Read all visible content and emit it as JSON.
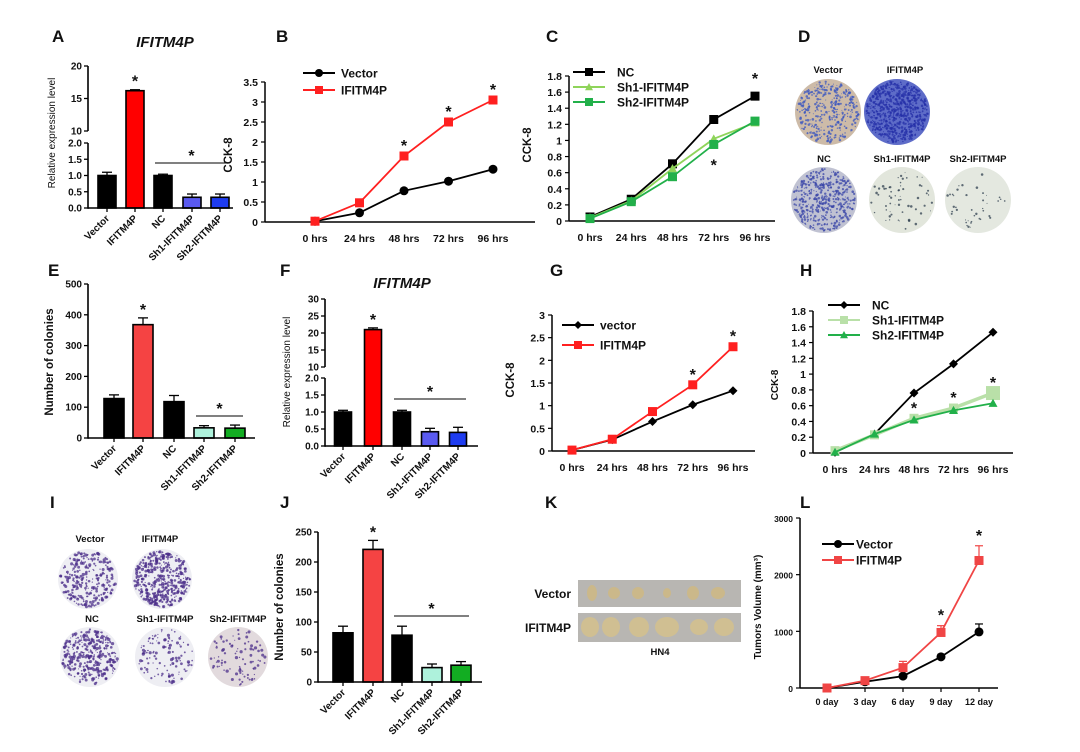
{
  "panel_labels": [
    "A",
    "B",
    "C",
    "D",
    "E",
    "F",
    "G",
    "H",
    "I",
    "J",
    "K",
    "L"
  ],
  "chart_data": [
    {
      "panel": "A",
      "type": "bar",
      "title": "IFITM4P",
      "ylabel": "Relative expression level",
      "categories": [
        "Vector",
        "IFITM4P",
        "NC",
        "Sh1-IFITM4P",
        "Sh2-IFITM4P"
      ],
      "values": [
        1.0,
        16.2,
        1.0,
        0.33,
        0.33
      ],
      "errors": [
        0.1,
        0.15,
        0.04,
        0.1,
        0.1
      ],
      "colors": [
        "#000000",
        "#ff0000",
        "#000000",
        "#5a5af0",
        "#1e3cf0"
      ],
      "axis_break": [
        2,
        10
      ],
      "ylim": [
        0,
        20
      ],
      "yticks": [
        0,
        0.5,
        1.0,
        1.5,
        2.0,
        10,
        15,
        20
      ],
      "ytick_labels": [
        "0.0",
        "0.5",
        "1.0",
        "1.5",
        "2.0",
        "10",
        "15",
        "20"
      ],
      "stars": [
        1
      ],
      "bracket": {
        "from": 2,
        "to": 4,
        "text": "*"
      }
    },
    {
      "panel": "B",
      "type": "line",
      "ylabel": "CCK-8",
      "x": [
        "0 hrs",
        "24 hrs",
        "48 hrs",
        "72 hrs",
        "96 hrs"
      ],
      "ylim": [
        0,
        3.5
      ],
      "yticks": [
        0,
        0.5,
        1,
        1.5,
        2,
        2.5,
        3,
        3.5
      ],
      "ytick_labels": [
        "0",
        "0.5",
        "1",
        "1.5",
        "2",
        "2.5",
        "3",
        "3.5"
      ],
      "series": [
        {
          "name": "Vector",
          "values": [
            0.02,
            0.23,
            0.78,
            1.02,
            1.32
          ],
          "color": "#000000",
          "marker": "circle"
        },
        {
          "name": "IFITM4P",
          "values": [
            0.02,
            0.48,
            1.65,
            2.5,
            3.05
          ],
          "color": "#ff2020",
          "marker": "square"
        }
      ],
      "stars": [
        {
          "series": 1,
          "x": 2,
          "text": "*"
        },
        {
          "series": 1,
          "x": 3,
          "text": "*"
        },
        {
          "series": 1,
          "x": 4,
          "text": "*"
        }
      ],
      "legend": "top-left"
    },
    {
      "panel": "C",
      "type": "line",
      "ylabel": "CCK-8",
      "x": [
        "0 hrs",
        "24 hrs",
        "48 hrs",
        "72 hrs",
        "96 hrs"
      ],
      "ylim": [
        0,
        1.8
      ],
      "yticks": [
        0,
        0.2,
        0.4,
        0.6,
        0.8,
        1,
        1.2,
        1.4,
        1.6,
        1.8
      ],
      "ytick_labels": [
        "0",
        "0.2",
        "0.4",
        "0.6",
        "0.8",
        "1",
        "1.2",
        "1.4",
        "1.6",
        "1.8"
      ],
      "series": [
        {
          "name": "NC",
          "values": [
            0.05,
            0.27,
            0.71,
            1.26,
            1.55
          ],
          "color": "#000000",
          "marker": "square"
        },
        {
          "name": "Sh1-IFITM4P",
          "values": [
            0.04,
            0.25,
            0.65,
            1.02,
            1.22
          ],
          "color": "#8fd45a",
          "marker": "triangle"
        },
        {
          "name": "Sh2-IFITM4P",
          "values": [
            0.03,
            0.24,
            0.55,
            0.95,
            1.24
          ],
          "color": "#22b04a",
          "marker": "square"
        }
      ],
      "stars": [
        {
          "series": 2,
          "x": 3,
          "text": "*",
          "below": true
        },
        {
          "series": 0,
          "x": 4,
          "text": "*",
          "below": true
        }
      ],
      "legend": "top-left"
    },
    {
      "panel": "E",
      "type": "bar",
      "ylabel": "Number of colonies",
      "categories": [
        "Vector",
        "IFITM4P",
        "NC",
        "Sh1-IFITM4P",
        "Sh2-IFITM4P"
      ],
      "values": [
        128,
        368,
        118,
        33,
        32
      ],
      "errors": [
        12,
        22,
        20,
        7,
        10
      ],
      "colors": [
        "#000000",
        "#f54343",
        "#000000",
        "#aef2dc",
        "#12ad22"
      ],
      "ylim": [
        0,
        500
      ],
      "yticks": [
        0,
        100,
        200,
        300,
        400,
        500
      ],
      "ytick_labels": [
        "0",
        "100",
        "200",
        "300",
        "400",
        "500"
      ],
      "stars": [
        1
      ],
      "bracket": {
        "from": 3,
        "to": 4,
        "text": "*"
      }
    },
    {
      "panel": "F",
      "type": "bar",
      "title": "IFITM4P",
      "ylabel": "Relative expression level",
      "categories": [
        "Vector",
        "IFITM4P",
        "NC",
        "Sh1-IFITM4P",
        "Sh2-IFITM4P"
      ],
      "values": [
        1.0,
        21.0,
        1.0,
        0.42,
        0.4
      ],
      "errors": [
        0.05,
        0.5,
        0.05,
        0.1,
        0.15
      ],
      "colors": [
        "#000000",
        "#ff0000",
        "#000000",
        "#5a5af0",
        "#1e3cf0"
      ],
      "axis_break": [
        2,
        10
      ],
      "ylim": [
        0,
        30
      ],
      "yticks": [
        0,
        0.5,
        1.0,
        1.5,
        2.0,
        10,
        15,
        20,
        25,
        30
      ],
      "ytick_labels": [
        "0.0",
        "0.5",
        "1.0",
        "1.5",
        "2.0",
        "10",
        "15",
        "20",
        "25",
        "30"
      ],
      "stars": [
        1
      ],
      "bracket": {
        "from": 2,
        "to": 4,
        "text": "*"
      }
    },
    {
      "panel": "G",
      "type": "line",
      "ylabel": "CCK-8",
      "x": [
        "0 hrs",
        "24 hrs",
        "48 hrs",
        "72 hrs",
        "96 hrs"
      ],
      "ylim": [
        0,
        3
      ],
      "yticks": [
        0,
        0.5,
        1,
        1.5,
        2,
        2.5,
        3
      ],
      "ytick_labels": [
        "0",
        "0.5",
        "1",
        "1.5",
        "2",
        "2.5",
        "3"
      ],
      "series": [
        {
          "name": "vector",
          "values": [
            0.02,
            0.25,
            0.65,
            1.02,
            1.33
          ],
          "color": "#000000",
          "marker": "diamond"
        },
        {
          "name": "IFITM4P",
          "values": [
            0.02,
            0.26,
            0.87,
            1.46,
            2.3
          ],
          "color": "#ff2020",
          "marker": "square"
        }
      ],
      "stars": [
        {
          "series": 1,
          "x": 3,
          "text": "*"
        },
        {
          "series": 1,
          "x": 4,
          "text": "*"
        }
      ],
      "legend": "top-left"
    },
    {
      "panel": "H",
      "type": "line",
      "ylabel": "CCK-8",
      "x": [
        "0 hrs",
        "24 hrs",
        "48 hrs",
        "72 hrs",
        "96 hrs"
      ],
      "ylim": [
        0,
        1.8
      ],
      "yticks": [
        0,
        0.2,
        0.4,
        0.6,
        0.8,
        1,
        1.2,
        1.4,
        1.6,
        1.8
      ],
      "ytick_labels": [
        "0",
        "0.2",
        "0.4",
        "0.6",
        "0.8",
        "1",
        "1.2",
        "1.4",
        "1.6",
        "1.8"
      ],
      "series": [
        {
          "name": "NC",
          "values": [
            0.01,
            0.24,
            0.76,
            1.13,
            1.53
          ],
          "color": "#000000",
          "marker": "diamond"
        },
        {
          "name": "Sh1-IFITM4P",
          "values": [
            0.03,
            0.23,
            0.44,
            0.57,
            0.76
          ],
          "color": "#b9e0a8",
          "marker": "square"
        },
        {
          "name": "Sh2-IFITM4P",
          "values": [
            0.01,
            0.24,
            0.42,
            0.54,
            0.63
          ],
          "color": "#22b04a",
          "marker": "triangle"
        }
      ],
      "stars": [
        {
          "series": 1,
          "x": 2,
          "text": "*"
        },
        {
          "series": 1,
          "x": 3,
          "text": "*"
        },
        {
          "series": 1,
          "x": 4,
          "text": "*"
        }
      ],
      "legend": "top-left"
    },
    {
      "panel": "J",
      "type": "bar",
      "ylabel": "Number of colonies",
      "categories": [
        "Vector",
        "IFITM4P",
        "NC",
        "Sh1-IFITM4P",
        "Sh2-IFITM4P"
      ],
      "values": [
        82,
        221,
        78,
        24,
        28
      ],
      "errors": [
        11,
        15,
        15,
        6,
        6
      ],
      "colors": [
        "#000000",
        "#f54343",
        "#000000",
        "#aef2dc",
        "#12ad22"
      ],
      "ylim": [
        0,
        250
      ],
      "yticks": [
        0,
        50,
        100,
        150,
        200,
        250
      ],
      "ytick_labels": [
        "0",
        "50",
        "100",
        "150",
        "200",
        "250"
      ],
      "stars": [
        1
      ],
      "bracket": {
        "from": 2,
        "to": 4,
        "text": "*"
      }
    },
    {
      "panel": "L",
      "type": "line",
      "ylabel": "Tumors Volume (mm³)",
      "x": [
        "0 day",
        "3 day",
        "6 day",
        "9 day",
        "12 day"
      ],
      "ylim": [
        0,
        3000
      ],
      "yticks": [
        0,
        1000,
        2000,
        3000
      ],
      "ytick_labels": [
        "0",
        "1000",
        "2000",
        "3000"
      ],
      "series": [
        {
          "name": "Vector",
          "values": [
            0,
            110,
            210,
            550,
            990
          ],
          "errors": [
            0,
            20,
            30,
            30,
            140
          ],
          "color": "#000000",
          "marker": "circle"
        },
        {
          "name": "IFITM4P",
          "values": [
            0,
            130,
            360,
            980,
            2250
          ],
          "errors": [
            0,
            20,
            110,
            120,
            260
          ],
          "color": "#f04545",
          "marker": "square"
        }
      ],
      "stars": [
        {
          "series": 1,
          "x": 3,
          "text": "*"
        },
        {
          "series": 1,
          "x": 4,
          "text": "*"
        }
      ],
      "legend": "top-left"
    }
  ],
  "images": {
    "D": {
      "labels": [
        "Vector",
        "IFITM4P",
        "NC",
        "Sh1-IFITM4P",
        "Sh2-IFITM4P"
      ]
    },
    "I": {
      "labels": [
        "Vector",
        "IFITM4P",
        "NC",
        "Sh1-IFITM4P",
        "Sh2-IFITM4P"
      ]
    },
    "K": {
      "rows": [
        "Vector",
        "IFITM4P"
      ],
      "caption": "HN4"
    }
  }
}
